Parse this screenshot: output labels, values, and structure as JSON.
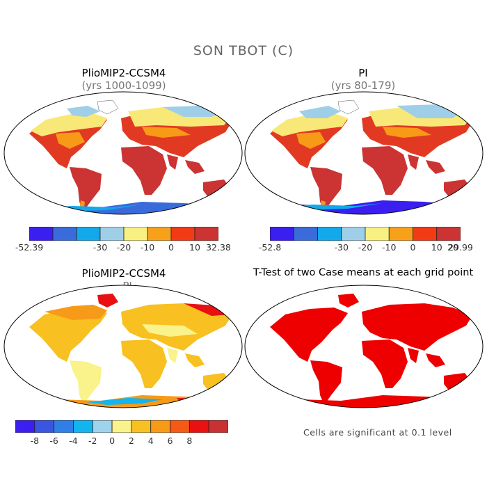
{
  "title": "SON TBOT (C)",
  "panels": [
    {
      "id": "p1",
      "title": "PlioMIP2-CCSM4",
      "subtitle": "(yrs 1000-1099)"
    },
    {
      "id": "p2",
      "title": "PI",
      "subtitle": "(yrs 80-179)"
    },
    {
      "id": "p3",
      "title": "PlioMIP2-CCSM4",
      "subtitle": "- PI"
    },
    {
      "id": "p4",
      "title": "T-Test of two Case means at each grid point",
      "subtitle": ""
    }
  ],
  "colorbars": [
    {
      "id": "cb1",
      "colors": [
        "#3a1ff0",
        "#3a6bdb",
        "#12a8ea",
        "#9fcfe8",
        "#f8f080",
        "#f7a01a",
        "#f23a14",
        "#cc3333"
      ],
      "labels": [
        "-52.39",
        "-30",
        "-20",
        "-10",
        "0",
        "10",
        "32.38"
      ]
    },
    {
      "id": "cb2",
      "colors": [
        "#3a1ff0",
        "#3a6bdb",
        "#12a8ea",
        "#9fcfe8",
        "#f8f080",
        "#f7a01a",
        "#f23a14",
        "#cc3333"
      ],
      "labels": [
        "-52.8",
        "-30",
        "-20",
        "-10",
        "0",
        "10",
        "20",
        "29.99"
      ]
    },
    {
      "id": "cb3",
      "colors": [
        "#3a1ff0",
        "#3a55e0",
        "#2f7fe6",
        "#12b5ee",
        "#9fd2ec",
        "#faf28a",
        "#f8c020",
        "#f79a18",
        "#f55a14",
        "#e81010",
        "#c83232"
      ],
      "labels": [
        "-8",
        "-6",
        "-4",
        "-2",
        "0",
        "2",
        "4",
        "6",
        "8"
      ]
    }
  ],
  "footnote": "Cells are significant at 0.1 level",
  "icons": {
    "map": "world-map-robinson"
  }
}
